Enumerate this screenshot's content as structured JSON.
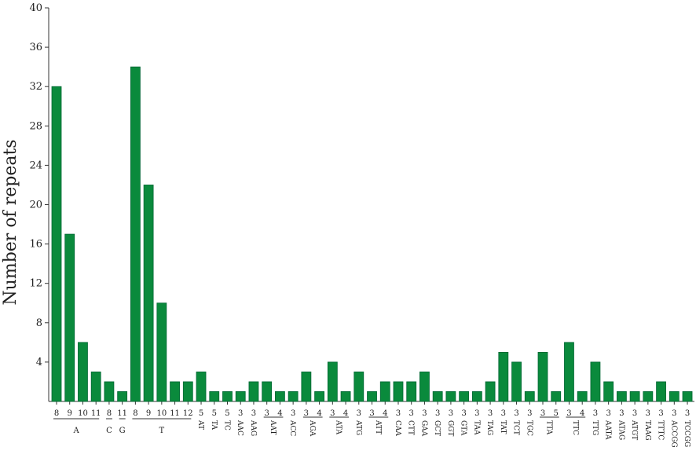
{
  "chart_data": {
    "type": "bar",
    "y_label": "Number of repeats",
    "color": "#0a8a3c",
    "ylim": [
      0,
      40
    ],
    "yticks": [
      4,
      8,
      12,
      16,
      20,
      24,
      28,
      32,
      36,
      40
    ],
    "groups": [
      {
        "label": "A",
        "categories": [
          "8",
          "9",
          "10",
          "11"
        ],
        "values": [
          32,
          17,
          6,
          3
        ]
      },
      {
        "label": "C",
        "categories": [
          "8"
        ],
        "values": [
          2
        ]
      },
      {
        "label": "G",
        "categories": [
          "11"
        ],
        "values": [
          1
        ]
      },
      {
        "label": "T",
        "categories": [
          "8",
          "9",
          "10",
          "11",
          "12"
        ],
        "values": [
          34,
          22,
          10,
          2,
          2
        ]
      },
      {
        "label": "AT",
        "categories": [
          "5"
        ],
        "values": [
          3
        ]
      },
      {
        "label": "TA",
        "categories": [
          "5"
        ],
        "values": [
          1
        ]
      },
      {
        "label": "TC",
        "categories": [
          "5"
        ],
        "values": [
          1
        ]
      },
      {
        "label": "AAC",
        "categories": [
          "3"
        ],
        "values": [
          1
        ]
      },
      {
        "label": "AAG",
        "categories": [
          "3"
        ],
        "values": [
          2
        ]
      },
      {
        "label": "AAT",
        "categories": [
          "3",
          "4"
        ],
        "values": [
          2,
          1
        ]
      },
      {
        "label": "ACC",
        "categories": [
          "3"
        ],
        "values": [
          1
        ]
      },
      {
        "label": "AGA",
        "categories": [
          "3",
          "4"
        ],
        "values": [
          3,
          1
        ]
      },
      {
        "label": "ATA",
        "categories": [
          "3",
          "4"
        ],
        "values": [
          4,
          1
        ]
      },
      {
        "label": "ATG",
        "categories": [
          "3"
        ],
        "values": [
          3
        ]
      },
      {
        "label": "ATT",
        "categories": [
          "3",
          "4"
        ],
        "values": [
          1,
          2
        ]
      },
      {
        "label": "CAA",
        "categories": [
          "3"
        ],
        "values": [
          2
        ]
      },
      {
        "label": "CTT",
        "categories": [
          "3"
        ],
        "values": [
          2
        ]
      },
      {
        "label": "GAA",
        "categories": [
          "3"
        ],
        "values": [
          3
        ]
      },
      {
        "label": "GCT",
        "categories": [
          "3"
        ],
        "values": [
          1
        ]
      },
      {
        "label": "GGT",
        "categories": [
          "3"
        ],
        "values": [
          1
        ]
      },
      {
        "label": "GTA",
        "categories": [
          "3"
        ],
        "values": [
          1
        ]
      },
      {
        "label": "TAA",
        "categories": [
          "3"
        ],
        "values": [
          1
        ]
      },
      {
        "label": "TAG",
        "categories": [
          "3"
        ],
        "values": [
          2
        ]
      },
      {
        "label": "TAT",
        "categories": [
          "3"
        ],
        "values": [
          5
        ]
      },
      {
        "label": "TCT",
        "categories": [
          "3"
        ],
        "values": [
          4
        ]
      },
      {
        "label": "TGC",
        "categories": [
          "3"
        ],
        "values": [
          1
        ]
      },
      {
        "label": "TTA",
        "categories": [
          "3",
          "5"
        ],
        "values": [
          5,
          1
        ]
      },
      {
        "label": "TTC",
        "categories": [
          "3",
          "4"
        ],
        "values": [
          6,
          1
        ]
      },
      {
        "label": "TTG",
        "categories": [
          "3"
        ],
        "values": [
          4
        ]
      },
      {
        "label": "AATA",
        "categories": [
          "3"
        ],
        "values": [
          2
        ]
      },
      {
        "label": "ATAG",
        "categories": [
          "3"
        ],
        "values": [
          1
        ]
      },
      {
        "label": "ATGT",
        "categories": [
          "3"
        ],
        "values": [
          1
        ]
      },
      {
        "label": "TAAG",
        "categories": [
          "3"
        ],
        "values": [
          1
        ]
      },
      {
        "label": "TTTC",
        "categories": [
          "3"
        ],
        "values": [
          2
        ]
      },
      {
        "label": "ACCGG",
        "categories": [
          "3"
        ],
        "values": [
          1
        ]
      },
      {
        "label": "TCCGG",
        "categories": [
          "3"
        ],
        "values": [
          1
        ]
      }
    ]
  }
}
